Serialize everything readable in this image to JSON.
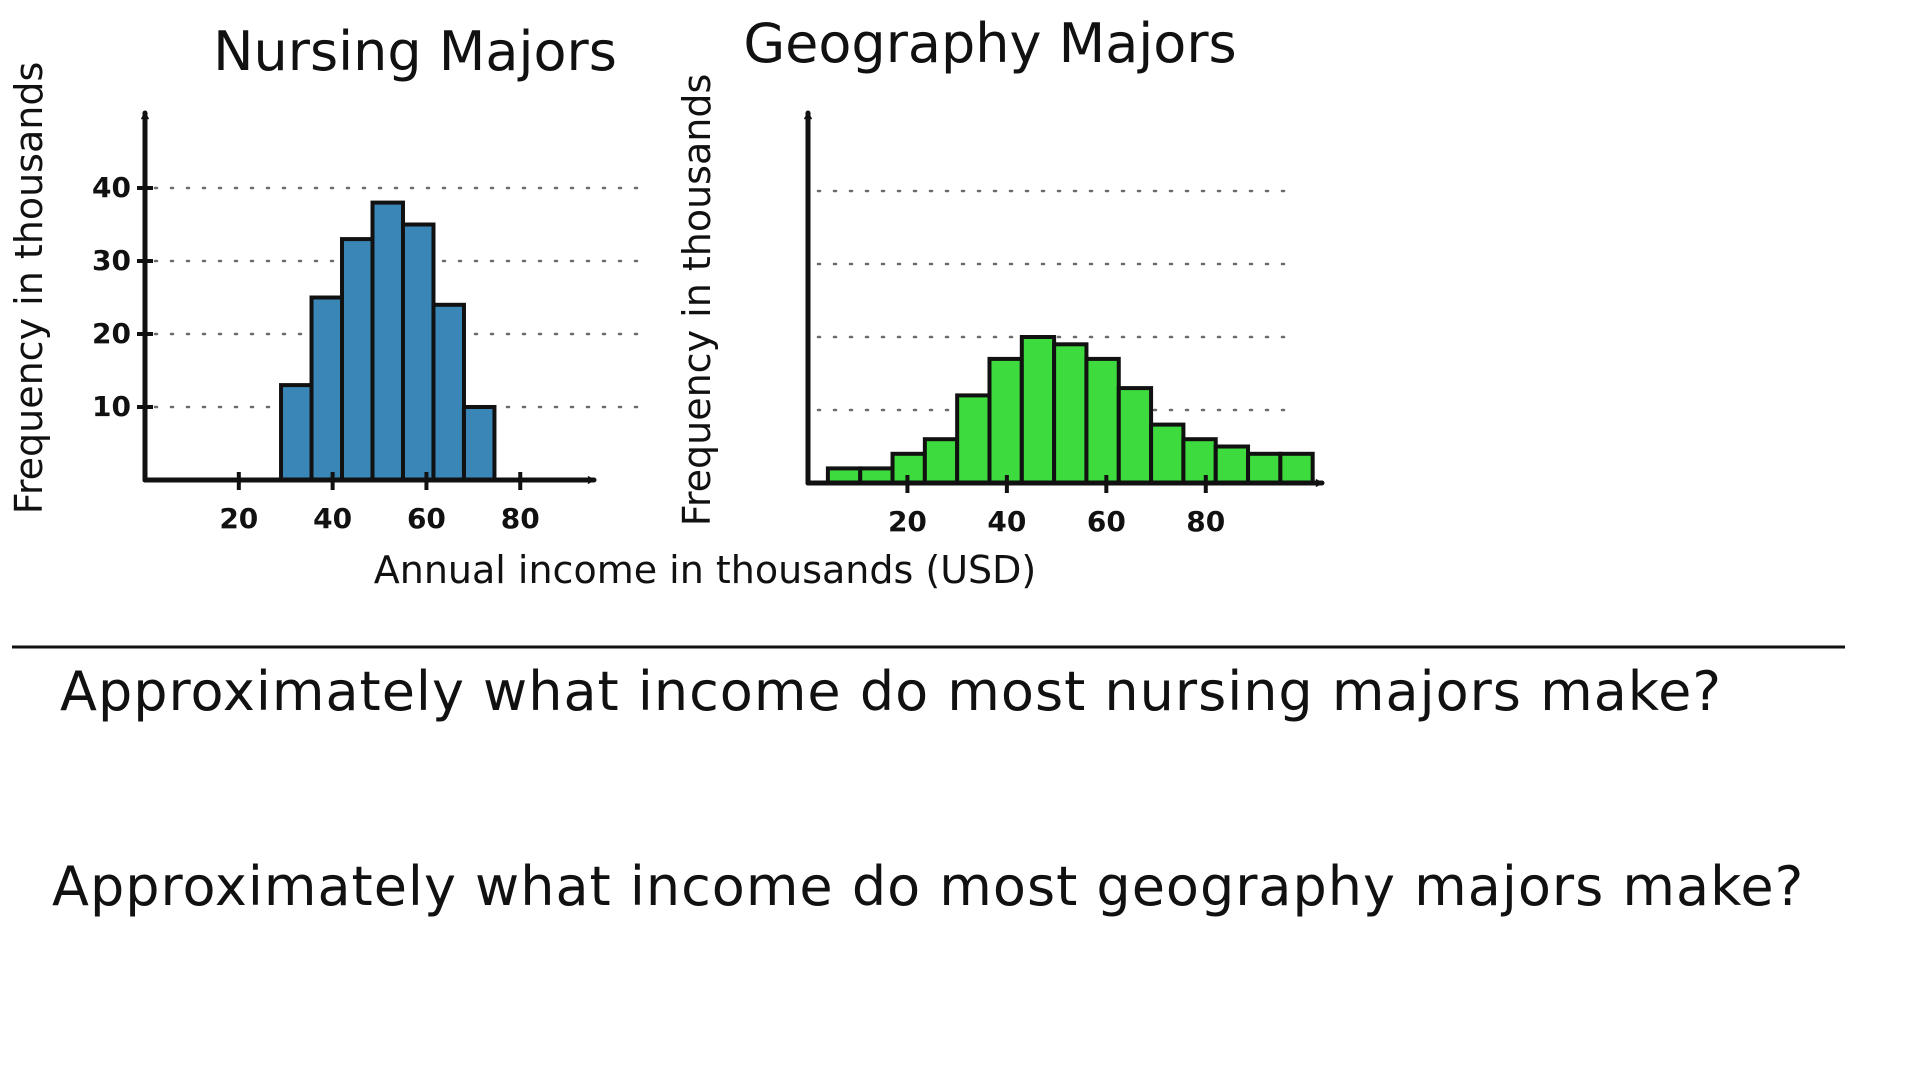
{
  "chart_data": [
    {
      "type": "bar",
      "title": "Nursing Majors",
      "xlabel": "Annual income in thousands (USD)",
      "ylabel": "Frequency in thousands",
      "xlim": [
        0,
        97
      ],
      "ylim": [
        0,
        50
      ],
      "x_ticks": [
        20,
        40,
        60,
        80
      ],
      "y_ticks": [
        10,
        20,
        30,
        40
      ],
      "bin_width": 6.5,
      "bar_color": "#3a87b7",
      "grid": "dotted horizontal",
      "bins": [
        {
          "x0": 29,
          "value": 13
        },
        {
          "x0": 35.5,
          "value": 25
        },
        {
          "x0": 42,
          "value": 33
        },
        {
          "x0": 48.5,
          "value": 38
        },
        {
          "x0": 55,
          "value": 35
        },
        {
          "x0": 61.5,
          "value": 24
        },
        {
          "x0": 68,
          "value": 10
        }
      ]
    },
    {
      "type": "bar",
      "title": "Geography Majors",
      "xlabel": "Annual income in thousands (USD)",
      "ylabel": "Frequency in thousands",
      "xlim": [
        0,
        108
      ],
      "ylim": [
        0,
        50
      ],
      "x_ticks": [
        20,
        40,
        60,
        80
      ],
      "y_ticks": [
        10,
        20,
        30,
        40
      ],
      "bin_width": 6.5,
      "bar_color": "#3ddb3d",
      "grid": "dotted horizontal",
      "bins": [
        {
          "x0": 4,
          "value": 2
        },
        {
          "x0": 10.5,
          "value": 2
        },
        {
          "x0": 17,
          "value": 4
        },
        {
          "x0": 23.5,
          "value": 6
        },
        {
          "x0": 30,
          "value": 12
        },
        {
          "x0": 36.5,
          "value": 17
        },
        {
          "x0": 43,
          "value": 20
        },
        {
          "x0": 49.5,
          "value": 19
        },
        {
          "x0": 56,
          "value": 17
        },
        {
          "x0": 62.5,
          "value": 13
        },
        {
          "x0": 69,
          "value": 8
        },
        {
          "x0": 75.5,
          "value": 6
        },
        {
          "x0": 82,
          "value": 5
        },
        {
          "x0": 88.5,
          "value": 4
        },
        {
          "x0": 95,
          "value": 4
        }
      ]
    }
  ],
  "questions": [
    "Approximately what income do most nursing majors make?",
    "Approximately what income do most geography majors make?"
  ]
}
